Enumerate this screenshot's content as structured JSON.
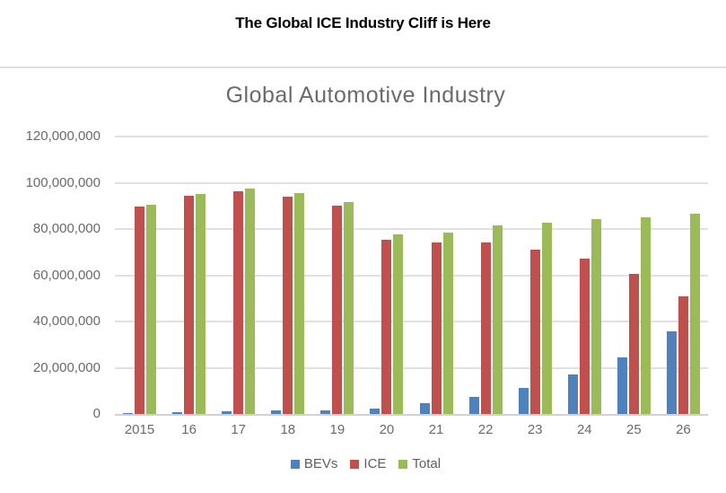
{
  "header": {
    "title": "The Global ICE Industry Cliff is Here"
  },
  "chart_data": {
    "type": "bar",
    "title": "Global Automotive Industry",
    "categories": [
      "2015",
      "16",
      "17",
      "18",
      "19",
      "20",
      "21",
      "22",
      "23",
      "24",
      "25",
      "26"
    ],
    "series": [
      {
        "name": "BEVs",
        "color": "#4f81bd",
        "values": [
          400000,
          800000,
          1200000,
          1600000,
          1700000,
          2300000,
          4600000,
          7400000,
          11400000,
          17200000,
          24600000,
          35800000
        ]
      },
      {
        "name": "ICE",
        "color": "#c0504d",
        "values": [
          89900000,
          94200000,
          96300000,
          94000000,
          90000000,
          75200000,
          74000000,
          74000000,
          71200000,
          67000000,
          60500000,
          50700000
        ]
      },
      {
        "name": "Total",
        "color": "#9bbb59",
        "values": [
          90300000,
          95000000,
          97500000,
          95600000,
          91700000,
          77500000,
          78600000,
          81400000,
          82600000,
          84200000,
          85100000,
          86500000
        ]
      }
    ],
    "xlabel": "",
    "ylabel": "",
    "ylim": [
      0,
      120000000
    ],
    "ytick_step": 20000000,
    "ytick_labels": [
      "0",
      "20,000,000",
      "40,000,000",
      "60,000,000",
      "80,000,000",
      "100,000,000",
      "120,000,000"
    ],
    "grid": true,
    "legend_position": "bottom"
  }
}
